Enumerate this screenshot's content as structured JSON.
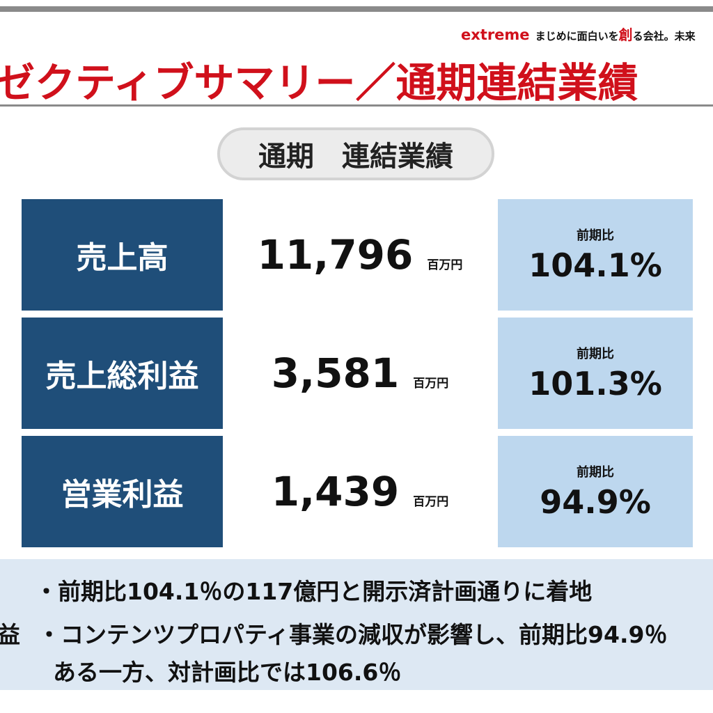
{
  "header": {
    "brand_name": "extreme",
    "tagline_before": "まじめに面白いを",
    "tagline_highlight": "創",
    "tagline_after": "る会社。未来",
    "title": "ゼクティブサマリー／通期連結業績"
  },
  "section": {
    "title": "通期　連結業績"
  },
  "metrics": [
    {
      "label": "売上高",
      "value": "11,796",
      "unit": "百万円",
      "ratio_label": "前期比",
      "ratio": "104.1%"
    },
    {
      "label": "売上総利益",
      "value": "3,581",
      "unit": "百万円",
      "ratio_label": "前期比",
      "ratio": "101.3%"
    },
    {
      "label": "営業利益",
      "value": "1,439",
      "unit": "百万円",
      "ratio_label": "前期比",
      "ratio": "94.9%"
    }
  ],
  "notes": {
    "line1": "・前期比104.1％の117億円と開示済計画通りに着地",
    "line2_prefix": "益",
    "line2": "・コンテンツプロパティ事業の減収が影響し、前期比94.9％",
    "line3": "ある一方、対計画比では106.6％"
  }
}
